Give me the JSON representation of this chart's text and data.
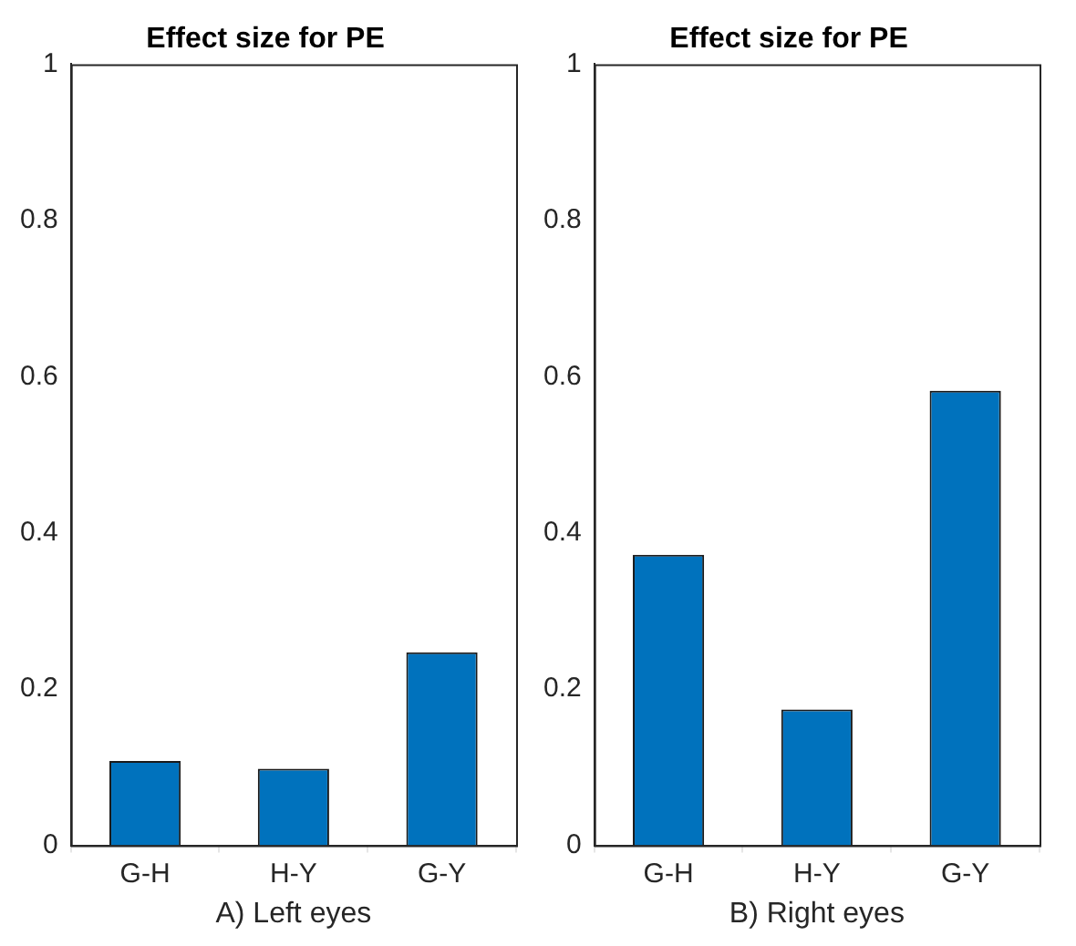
{
  "chart_data": [
    {
      "type": "bar",
      "title": "Effect size for PE",
      "xlabel": "A) Left eyes",
      "categories": [
        "G-H",
        "H-Y",
        "G-Y"
      ],
      "values": [
        0.108,
        0.098,
        0.247
      ],
      "color": "#0072bd",
      "ylim": [
        0,
        1
      ],
      "yticks": [
        0,
        0.2,
        0.4,
        0.6,
        0.8,
        1
      ],
      "grid": false,
      "legend": false
    },
    {
      "type": "bar",
      "title": "Effect size for PE",
      "xlabel": "B) Right eyes",
      "categories": [
        "G-H",
        "H-Y",
        "G-Y"
      ],
      "values": [
        0.372,
        0.174,
        0.582
      ],
      "color": "#0072bd",
      "ylim": [
        0,
        1
      ],
      "yticks": [
        0,
        0.2,
        0.4,
        0.6,
        0.8,
        1
      ],
      "grid": false,
      "legend": false
    }
  ]
}
